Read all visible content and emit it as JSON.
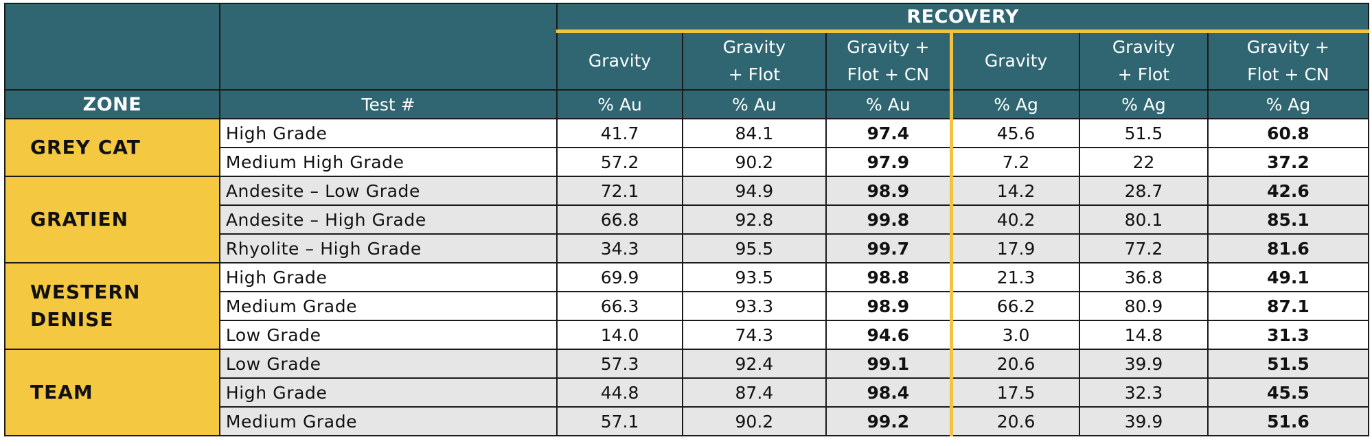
{
  "header": {
    "recovery": "RECOVERY",
    "zone": "ZONE",
    "test": "Test #",
    "methods": [
      "Gravity",
      "Gravity + Flot",
      "Gravity + Flot + CN",
      "Gravity",
      "Gravity + Flot",
      "Gravity + Flot + CN"
    ],
    "methods_lines": [
      [
        "Gravity"
      ],
      [
        "Gravity",
        "+ Flot"
      ],
      [
        "Gravity +",
        "Flot + CN"
      ],
      [
        "Gravity"
      ],
      [
        "Gravity",
        "+ Flot"
      ],
      [
        "Gravity +",
        "Flot + CN"
      ]
    ],
    "units": [
      "% Au",
      "% Au",
      "% Au",
      "% Ag",
      "% Ag",
      "% Ag"
    ]
  },
  "zones": [
    {
      "name": "GREY CAT",
      "rows": [
        {
          "test": "High Grade",
          "values": [
            "41.7",
            "84.1",
            "97.4",
            "45.6",
            "51.5",
            "60.8"
          ]
        },
        {
          "test": "Medium High Grade",
          "values": [
            "57.2",
            "90.2",
            "97.9",
            "7.2",
            "22",
            "37.2"
          ]
        }
      ]
    },
    {
      "name": "GRATIEN",
      "rows": [
        {
          "test": "Andesite – Low Grade",
          "values": [
            "72.1",
            "94.9",
            "98.9",
            "14.2",
            "28.7",
            "42.6"
          ]
        },
        {
          "test": "Andesite – High Grade",
          "values": [
            "66.8",
            "92.8",
            "99.8",
            "40.2",
            "80.1",
            "85.1"
          ]
        },
        {
          "test": "Rhyolite – High Grade",
          "values": [
            "34.3",
            "95.5",
            "99.7",
            "17.9",
            "77.2",
            "81.6"
          ]
        }
      ]
    },
    {
      "name": "WESTERN DENISE",
      "rows": [
        {
          "test": "High Grade",
          "values": [
            "69.9",
            "93.5",
            "98.8",
            "21.3",
            "36.8",
            "49.1"
          ]
        },
        {
          "test": "Medium Grade",
          "values": [
            "66.3",
            "93.3",
            "98.9",
            "66.2",
            "80.9",
            "87.1"
          ]
        },
        {
          "test": "Low Grade",
          "values": [
            "14.0",
            "74.3",
            "94.6",
            "3.0",
            "14.8",
            "31.3"
          ]
        }
      ]
    },
    {
      "name": "TEAM",
      "rows": [
        {
          "test": "Low Grade",
          "values": [
            "57.3",
            "92.4",
            "99.1",
            "20.6",
            "39.9",
            "51.5"
          ]
        },
        {
          "test": "High Grade",
          "values": [
            "44.8",
            "87.4",
            "98.4",
            "17.5",
            "32.3",
            "45.5"
          ]
        },
        {
          "test": "Medium Grade",
          "values": [
            "57.1",
            "90.2",
            "99.2",
            "20.6",
            "39.9",
            "51.6"
          ]
        }
      ]
    }
  ],
  "colors": {
    "header_bg": "#2f6672",
    "accent": "#f2c340",
    "zone_bg": "#f5c842",
    "shade": "#e6e6e6"
  }
}
